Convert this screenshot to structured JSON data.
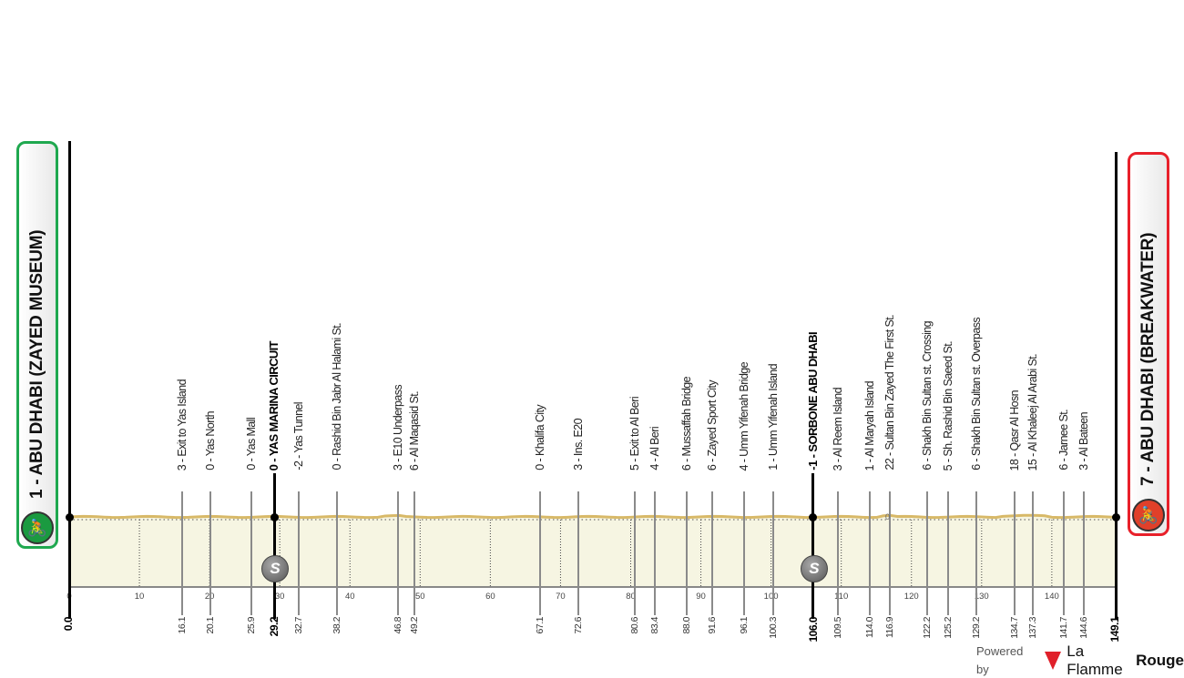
{
  "start": {
    "label": "1 - ABU DHABI (ZAYED MUSEUM)",
    "km": 0.0,
    "km_label": "0.0",
    "color": "#1fa84f",
    "icon": "cyclist-icon"
  },
  "finish": {
    "label": "7 - ABU DHABI (BREAKWATER)",
    "km": 149.1,
    "km_label": "149.1",
    "color": "#e8202a",
    "icon": "cyclist-icon"
  },
  "axis": {
    "ticks": [
      "0",
      "10",
      "20",
      "30",
      "40",
      "50",
      "60",
      "70",
      "80",
      "90",
      "100",
      "110",
      "120",
      "130",
      "140"
    ],
    "max_km": 149.1
  },
  "waypoints": [
    {
      "km": 16.1,
      "km_label": "16.1",
      "label": "3 - Exit to Yas Island",
      "bold": false
    },
    {
      "km": 20.1,
      "km_label": "20.1",
      "label": "0 - Yas North",
      "bold": false
    },
    {
      "km": 25.9,
      "km_label": "25.9",
      "label": "0 - Yas Mall",
      "bold": false
    },
    {
      "km": 29.2,
      "km_label": "29.2",
      "label": "0 - YAS MARINA CIRCUIT",
      "bold": true,
      "sprint": true
    },
    {
      "km": 32.7,
      "km_label": "32.7",
      "label": "-2 - Yas Tunnel",
      "bold": false
    },
    {
      "km": 38.2,
      "km_label": "38.2",
      "label": "0 - Rashid Bin Jabr Al Halami St.",
      "bold": false
    },
    {
      "km": 46.8,
      "km_label": "46.8",
      "label": "3 - E10 Underpass",
      "bold": false
    },
    {
      "km": 49.2,
      "km_label": "49.2",
      "label": "6 - Al Maqasid St.",
      "bold": false
    },
    {
      "km": 67.1,
      "km_label": "67.1",
      "label": "0 - Khalifa City",
      "bold": false
    },
    {
      "km": 72.6,
      "km_label": "72.6",
      "label": "3 - Ins. E20",
      "bold": false
    },
    {
      "km": 80.6,
      "km_label": "80.6",
      "label": "5 - Exit to Al Beri",
      "bold": false
    },
    {
      "km": 83.4,
      "km_label": "83.4",
      "label": "4 - Al Beri",
      "bold": false
    },
    {
      "km": 88.0,
      "km_label": "88.0",
      "label": "6 - Mussaffah Bridge",
      "bold": false
    },
    {
      "km": 91.6,
      "km_label": "91.6",
      "label": "6 - Zayed Sport City",
      "bold": false
    },
    {
      "km": 96.1,
      "km_label": "96.1",
      "label": "4 - Umm Yifenah Bridge",
      "bold": false
    },
    {
      "km": 100.3,
      "km_label": "100.3",
      "label": "1 - Umm Yifenah Island",
      "bold": false
    },
    {
      "km": 106.0,
      "km_label": "106.0",
      "label": "-1 - SORBONE ABU DHABI",
      "bold": true,
      "sprint": true
    },
    {
      "km": 109.5,
      "km_label": "109.5",
      "label": "3 - Al Reem Island",
      "bold": false
    },
    {
      "km": 114.0,
      "km_label": "114.0",
      "label": "1 - Al Maryah Island",
      "bold": false
    },
    {
      "km": 116.9,
      "km_label": "116.9",
      "label": "22 - Sultan Bin Zayed The First St.",
      "bold": false
    },
    {
      "km": 122.2,
      "km_label": "122.2",
      "label": "6 - Shakh Bin Sultan st. Crossing",
      "bold": false
    },
    {
      "km": 125.2,
      "km_label": "125.2",
      "label": "5 - Sh. Rashid Bin Saeed St.",
      "bold": false
    },
    {
      "km": 129.2,
      "km_label": "129.2",
      "label": "6 - Shakh Bin Sultan st. Overpass",
      "bold": false
    },
    {
      "km": 134.7,
      "km_label": "134.7",
      "label": "18 - Qasr Al Hosn",
      "bold": false
    },
    {
      "km": 137.3,
      "km_label": "137.3",
      "label": "15 - Al Khaleej Al Arabi St.",
      "bold": false
    },
    {
      "km": 141.7,
      "km_label": "141.7",
      "label": "6 - Jarnee St.",
      "bold": false
    },
    {
      "km": 144.6,
      "km_label": "144.6",
      "label": "3 - Al Bateen",
      "bold": false
    }
  ],
  "baseline_label": "0",
  "sprint_symbol": "S",
  "colors": {
    "profile_fill": "#f6f5e2",
    "profile_line": "#d8b968"
  },
  "footer": {
    "powered_by": "Powered by",
    "brand_a": "La Flamme",
    "brand_b": "Rouge",
    "logo_number": "1"
  }
}
